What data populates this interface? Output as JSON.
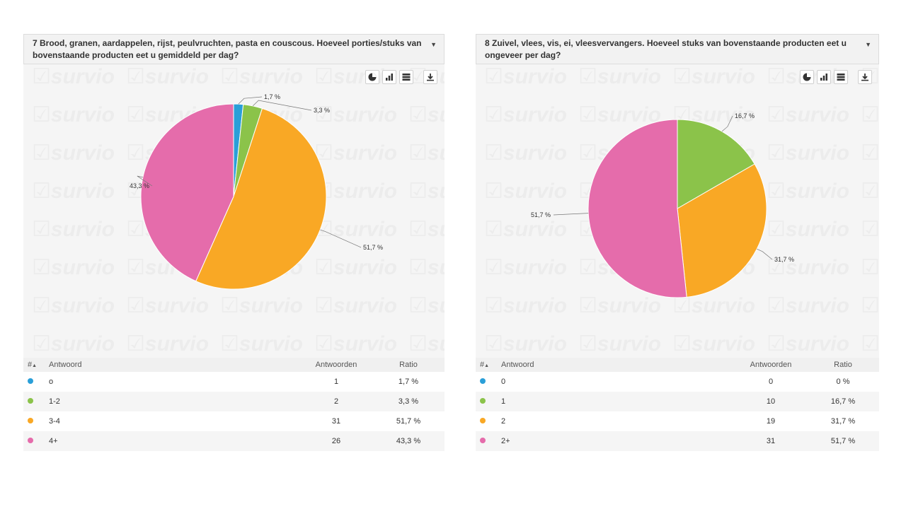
{
  "panels": [
    {
      "title": "7 Brood, granen, aardappelen, rijst, peulvruchten, pasta en couscous. Hoeveel porties/stuks van bovenstaande producten eet u gemiddeld per dag?",
      "watermark": "survio",
      "table_headers": {
        "num": "#",
        "sort": "▲",
        "answer": "Antwoord",
        "count": "Antwoorden",
        "ratio": "Ratio"
      },
      "rows": [
        {
          "label": "o",
          "count": "1",
          "ratio": "1,7 %",
          "color": "#2a9fd8"
        },
        {
          "label": "1-2",
          "count": "2",
          "ratio": "3,3 %",
          "color": "#8bc34a"
        },
        {
          "label": "3-4",
          "count": "31",
          "ratio": "51,7 %",
          "color": "#f9a825"
        },
        {
          "label": "4+",
          "count": "26",
          "ratio": "43,3 %",
          "color": "#e56cab"
        }
      ],
      "chart_data": {
        "type": "pie",
        "categories": [
          "o",
          "1-2",
          "3-4",
          "4+"
        ],
        "values": [
          1,
          2,
          31,
          26
        ],
        "labels": [
          "1,7 %",
          "3,3 %",
          "51,7 %",
          "43,3 %"
        ],
        "colors": [
          "#2a9fd8",
          "#8bc34a",
          "#f9a825",
          "#e56cab"
        ]
      }
    },
    {
      "title": "8 Zuivel, vlees, vis, ei, vleesvervangers. Hoeveel stuks van bovenstaande producten eet u ongeveer per dag?",
      "watermark": "survio",
      "table_headers": {
        "num": "#",
        "sort": "▲",
        "answer": "Antwoord",
        "count": "Antwoorden",
        "ratio": "Ratio"
      },
      "rows": [
        {
          "label": "0",
          "count": "0",
          "ratio": "0 %",
          "color": "#2a9fd8"
        },
        {
          "label": "1",
          "count": "10",
          "ratio": "16,7 %",
          "color": "#8bc34a"
        },
        {
          "label": "2",
          "count": "19",
          "ratio": "31,7 %",
          "color": "#f9a825"
        },
        {
          "label": "2+",
          "count": "31",
          "ratio": "51,7 %",
          "color": "#e56cab"
        }
      ],
      "chart_data": {
        "type": "pie",
        "categories": [
          "0",
          "1",
          "2",
          "2+"
        ],
        "values": [
          0,
          10,
          19,
          31
        ],
        "labels": [
          "0 %",
          "16,7 %",
          "31,7 %",
          "51,7 %"
        ],
        "colors": [
          "#2a9fd8",
          "#8bc34a",
          "#f9a825",
          "#e56cab"
        ]
      }
    }
  ],
  "toolbar_icons": [
    "pie-chart-icon",
    "bar-chart-icon",
    "table-icon",
    "download-icon"
  ]
}
